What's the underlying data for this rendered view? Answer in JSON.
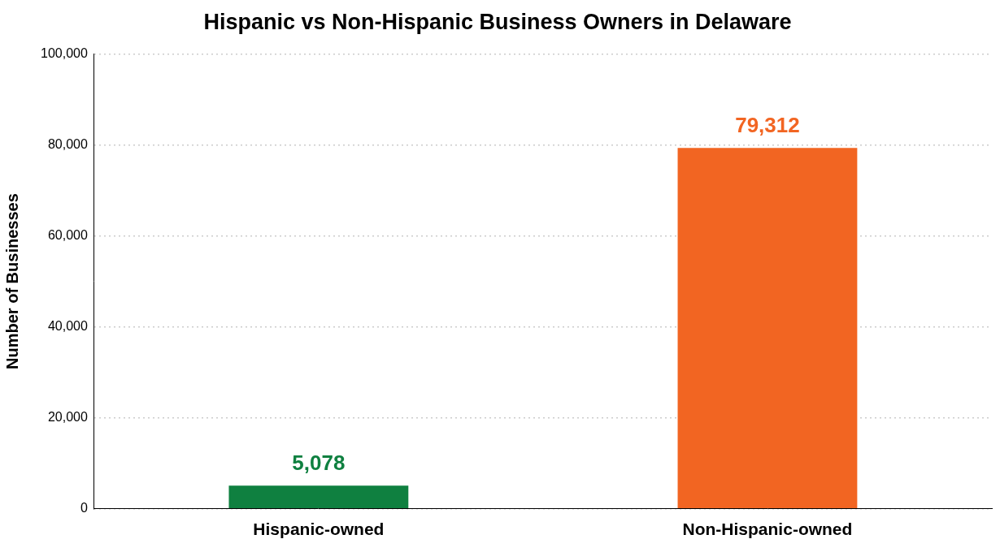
{
  "chart_data": {
    "type": "bar",
    "title": "Hispanic vs Non-Hispanic Business Owners in Delaware",
    "y_label": "Number of Businesses",
    "categories": [
      "Hispanic-owned",
      "Non-Hispanic-owned"
    ],
    "values": [
      5078,
      79312
    ],
    "value_labels": [
      "5,078",
      "79,312"
    ],
    "colors": [
      "#0f8040",
      "#f26522"
    ],
    "ylim": [
      0,
      100000
    ],
    "yticks": [
      0,
      {
        "value": 20000,
        "label": "20,000"
      },
      {
        "value": 40000,
        "label": "40,000"
      },
      {
        "value": 60000,
        "label": "60,000"
      },
      {
        "value": 80000,
        "label": "80,000"
      },
      {
        "value": 100000,
        "label": "100,000"
      }
    ],
    "grid": true,
    "data_labels": true
  }
}
